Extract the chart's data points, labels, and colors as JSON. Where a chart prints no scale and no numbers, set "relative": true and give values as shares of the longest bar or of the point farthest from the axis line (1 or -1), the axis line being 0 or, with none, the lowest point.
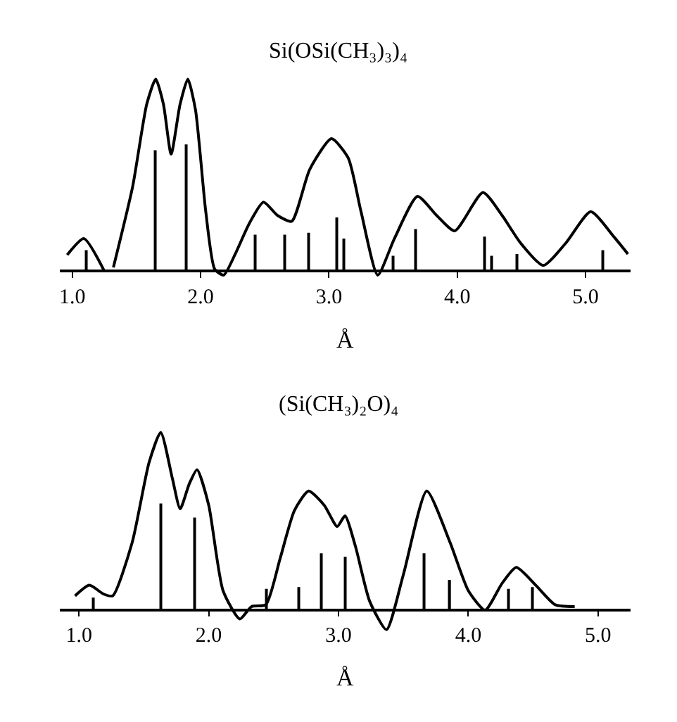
{
  "chart_data": [
    {
      "type": "line",
      "title": "Si(OSi(CH₃)₃)₄",
      "xlabel": "Å",
      "relative": true,
      "xlim": [
        0.9,
        5.35
      ],
      "xticks": [
        {
          "value": 1,
          "label": "1.0"
        },
        {
          "value": 2,
          "label": "2.0"
        },
        {
          "value": 3,
          "label": "3.0"
        },
        {
          "value": 4,
          "label": "4.0"
        },
        {
          "value": 5,
          "label": "5.0"
        }
      ],
      "tick_labels": "x",
      "grid": false,
      "marker": "none",
      "line_style": "solid",
      "series": [
        {
          "color": "#000000",
          "x": [
            0.96,
            1.09,
            1.25,
            1.29,
            1.32,
            1.47,
            1.58,
            1.65,
            1.71,
            1.77,
            1.84,
            1.9,
            1.96,
            2.04,
            2.11,
            2.18,
            2.27,
            2.38,
            2.49,
            2.6,
            2.71,
            2.85,
            3.02,
            3.15,
            3.25,
            3.38,
            3.51,
            3.69,
            3.84,
            3.98,
            4.2,
            4.35,
            4.49,
            4.67,
            4.85,
            5.04,
            5.22,
            5.33
          ],
          "values": [
            0.085,
            0.17,
            0.0,
            null,
            0.02,
            0.44,
            0.87,
            1.0,
            0.87,
            0.61,
            0.87,
            1.0,
            0.84,
            0.31,
            0.01,
            -0.02,
            0.09,
            0.25,
            0.36,
            0.29,
            0.26,
            0.53,
            0.69,
            0.59,
            0.31,
            -0.02,
            0.17,
            0.39,
            0.29,
            0.21,
            0.41,
            0.29,
            0.15,
            0.03,
            0.15,
            0.31,
            0.18,
            0.09
          ]
        },
        {
          "type": "bar",
          "color": "#000000",
          "x": [
            1.11,
            1.65,
            1.89,
            2.42,
            2.66,
            2.84,
            3.06,
            3.12,
            3.5,
            3.68,
            4.21,
            4.27,
            4.47,
            5.13
          ],
          "values": [
            0.11,
            0.63,
            0.66,
            0.19,
            0.19,
            0.2,
            0.28,
            0.17,
            0.08,
            0.22,
            0.18,
            0.08,
            0.09,
            0.11
          ]
        }
      ]
    },
    {
      "type": "line",
      "title": "(Si(CH₃)₂O)₄",
      "xlabel": "Å",
      "relative": true,
      "xlim": [
        0.85,
        5.25
      ],
      "xticks": [
        {
          "value": 1,
          "label": "1.0"
        },
        {
          "value": 2,
          "label": "2.0"
        },
        {
          "value": 3,
          "label": "3.0"
        },
        {
          "value": 4,
          "label": "4.0"
        },
        {
          "value": 5,
          "label": "5.0"
        }
      ],
      "tick_labels": "x",
      "grid": false,
      "marker": "none",
      "line_style": "solid",
      "series": [
        {
          "color": "#000000",
          "x": [
            0.97,
            1.08,
            1.19,
            1.26,
            1.41,
            1.54,
            1.63,
            1.72,
            1.78,
            1.85,
            1.91,
            2.0,
            2.11,
            2.24,
            2.33,
            2.44,
            2.55,
            2.66,
            2.77,
            2.89,
            2.99,
            3.05,
            3.13,
            3.24,
            3.37,
            3.5,
            3.68,
            3.86,
            4.0,
            4.13,
            4.26,
            4.37,
            4.52,
            4.67,
            4.82
          ],
          "values": [
            0.08,
            0.14,
            0.09,
            0.08,
            0.38,
            0.83,
            1.0,
            0.74,
            0.57,
            0.71,
            0.79,
            0.59,
            0.11,
            -0.05,
            0.02,
            0.03,
            0.29,
            0.56,
            0.67,
            0.59,
            0.47,
            0.53,
            0.36,
            0.05,
            -0.11,
            0.2,
            0.67,
            0.38,
            0.11,
            0.0,
            0.15,
            0.24,
            0.14,
            0.03,
            0.02
          ]
        },
        {
          "type": "bar",
          "color": "#000000",
          "x": [
            1.11,
            1.63,
            1.89,
            2.44,
            2.69,
            2.87,
            3.05,
            3.66,
            3.86,
            4.31,
            4.49
          ],
          "values": [
            0.07,
            0.6,
            0.52,
            0.12,
            0.13,
            0.32,
            0.3,
            0.32,
            0.17,
            0.12,
            0.13
          ]
        }
      ]
    }
  ]
}
